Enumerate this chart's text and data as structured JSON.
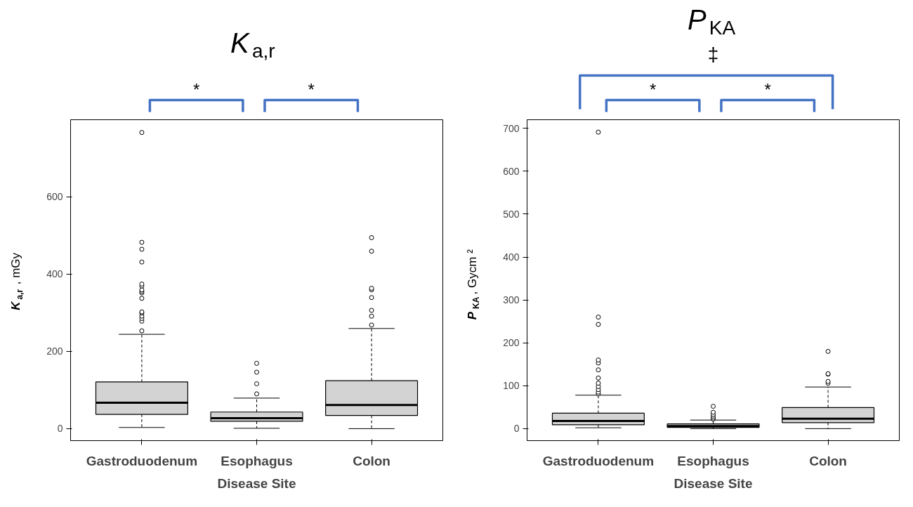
{
  "chart_data": [
    {
      "type": "box",
      "title": "K$_{a,r}$",
      "ylabel": "K$_{a,r}$, mGy",
      "xlabel": "Disease Site",
      "categories": [
        "Gastroduodenum",
        "Esophagus",
        "Colon"
      ],
      "ylim": [
        -31,
        799
      ],
      "yticks": [
        0,
        200,
        400,
        600
      ],
      "grid": false,
      "annotations": [
        "*",
        "*"
      ],
      "series": [
        {
          "color": "#d3d3d3",
          "boxes": [
            {
              "low": 3,
              "q1": 37,
              "median": 67,
              "q3": 121,
              "high": 244,
              "outliers": [
                253,
                278,
                285,
                291,
                299,
                302,
                337,
                351,
                355,
                359,
                369,
                374,
                431,
                464,
                482,
                766
              ]
            },
            {
              "low": 1,
              "q1": 19,
              "median": 27,
              "q3": 43,
              "high": 79,
              "outliers": [
                90,
                116,
                146,
                169
              ]
            },
            {
              "low": 0,
              "q1": 34,
              "median": 61,
              "q3": 124,
              "high": 259,
              "outliers": [
                268,
                291,
                306,
                339,
                359,
                363,
                459,
                494
              ]
            }
          ]
        }
      ]
    },
    {
      "type": "box",
      "title": "P$_{KA}$",
      "ylabel": "P$_{KA}$, Gycm ²",
      "xlabel": "Disease Site",
      "categories": [
        "Gastroduodenum",
        "Esophagus",
        "Colon"
      ],
      "ylim": [
        -28,
        720
      ],
      "yticks": [
        0,
        100,
        200,
        300,
        400,
        500,
        600,
        700
      ],
      "grid": false,
      "annotations": [
        "‡",
        "*",
        "*"
      ],
      "series": [
        {
          "color": "#d3d3d3",
          "boxes": [
            {
              "low": 2,
              "q1": 9,
              "median": 18,
              "q3": 36,
              "high": 78,
              "outliers": [
                81,
                85,
                91,
                98,
                106,
                118,
                137,
                153,
                160,
                243,
                260,
                691
              ]
            },
            {
              "low": 0,
              "q1": 3,
              "median": 6,
              "q3": 11,
              "high": 20,
              "outliers": [
                22,
                25,
                29,
                33,
                38,
                52
              ]
            },
            {
              "low": 0,
              "q1": 14,
              "median": 23,
              "q3": 49,
              "high": 97,
              "outliers": [
                106,
                110,
                127,
                128,
                180
              ]
            }
          ]
        }
      ]
    }
  ]
}
